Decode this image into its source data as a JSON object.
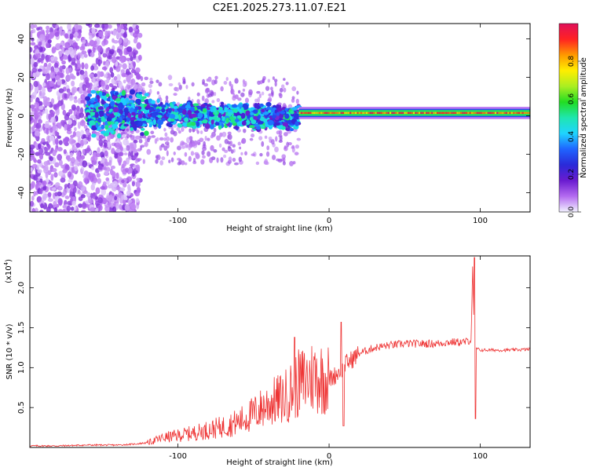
{
  "title": "C2E1.2025.273.11.07.E21",
  "chart_data": [
    {
      "type": "heatmap",
      "title": "C2E1.2025.273.11.07.E21",
      "xlabel": "Height of straight line (km)",
      "ylabel": "Frequency (Hz)",
      "xlim": [
        -198,
        133
      ],
      "ylim": [
        -50,
        48
      ],
      "xticks": [
        -100,
        0,
        100
      ],
      "xtick_labels": [
        "-100",
        "0",
        "100"
      ],
      "yticks": [
        -40,
        -20,
        0,
        20,
        40
      ],
      "ytick_labels": [
        "-40",
        "-20",
        "0",
        "20",
        "40"
      ],
      "colorbar": {
        "label": "Normalized spectral amplitude",
        "range": [
          0,
          1
        ],
        "ticks": [
          0.0,
          0.2,
          0.4,
          0.6,
          0.8
        ],
        "tick_labels": [
          "0.0",
          "0.2",
          "0.4",
          "0.6",
          "0.8"
        ],
        "colormap": [
          "#f2f2ff",
          "#b46bf0",
          "#6a1bd0",
          "#2a2ad8",
          "#1f64ff",
          "#1fd4ff",
          "#1fe6b0",
          "#22dd22",
          "#aaee22",
          "#ffee00",
          "#ff9900",
          "#ff2222",
          "#e0105a"
        ]
      },
      "description_regions": [
        {
          "x_range": [
            -198,
            -125
          ],
          "freq_range": [
            -50,
            48
          ],
          "amplitude": 0.15
        },
        {
          "x_range": [
            -160,
            -20
          ],
          "freq_range": [
            -12,
            14
          ],
          "amplitude": 0.4
        },
        {
          "x_range": [
            -20,
            133
          ],
          "freq_range": [
            0,
            3
          ],
          "amplitude": 0.95
        }
      ]
    },
    {
      "type": "line",
      "xlabel": "Height of straight line (km)",
      "ylabel": "SNR (10 * v/v)",
      "y_multiplier": "(x10",
      "y_multiplier_exp": "4",
      "xlim": [
        -198,
        133
      ],
      "ylim": [
        0,
        2.4
      ],
      "xticks": [
        -100,
        0,
        100
      ],
      "xtick_labels": [
        "-100",
        "0",
        "100"
      ],
      "yticks": [
        0.5,
        1.0,
        1.5,
        2.0
      ],
      "ytick_labels": [
        "0.5",
        "1.0",
        "1.5",
        "2.0"
      ],
      "series": [
        {
          "name": "SNR",
          "color": "#ee3333",
          "x": [
            -198,
            -180,
            -160,
            -140,
            -130,
            -120,
            -110,
            -100,
            -90,
            -80,
            -70,
            -60,
            -50,
            -40,
            -30,
            -20,
            -10,
            0,
            5,
            9,
            11,
            15,
            20,
            30,
            40,
            50,
            60,
            70,
            80,
            90,
            94,
            95,
            96,
            97,
            100,
            110,
            120,
            133
          ],
          "values": [
            0.02,
            0.02,
            0.03,
            0.03,
            0.04,
            0.06,
            0.12,
            0.15,
            0.18,
            0.22,
            0.26,
            0.32,
            0.42,
            0.55,
            0.62,
            0.8,
            0.9,
            0.85,
            0.92,
            1.0,
            1.05,
            1.1,
            1.18,
            1.25,
            1.28,
            1.3,
            1.3,
            1.3,
            1.32,
            1.32,
            1.35,
            2.3,
            1.3,
            1.24,
            1.22,
            1.22,
            1.22,
            1.23
          ]
        }
      ],
      "annotations": [
        {
          "x": -23,
          "y": 1.38
        },
        {
          "x": 8,
          "y": 1.57
        },
        {
          "x": 96,
          "y": 2.38
        }
      ]
    }
  ]
}
